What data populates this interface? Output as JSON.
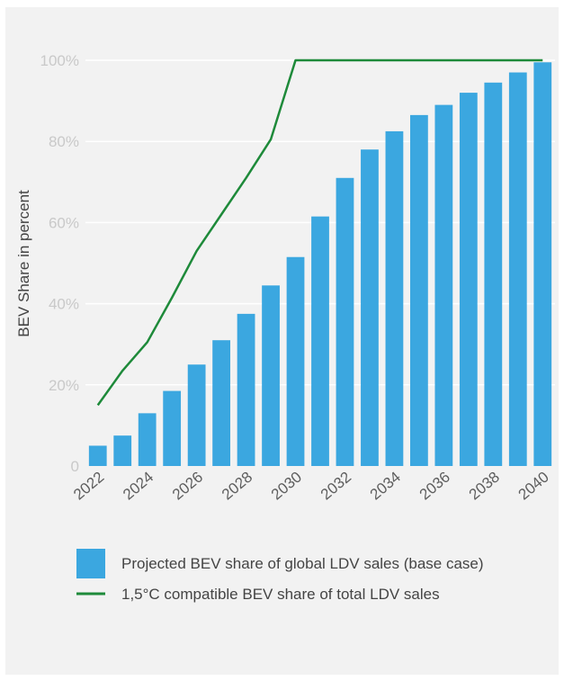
{
  "colors": {
    "bar": "#3ba7e0",
    "line": "#1e8a3a",
    "grid": "#ffffff",
    "background": "#f2f2f2"
  },
  "chart_data": {
    "type": "bar",
    "title": "",
    "xlabel": "",
    "ylabel": "BEV Share in percent",
    "ylim": [
      0,
      100
    ],
    "y_ticks": [
      "0",
      "20%",
      "40%",
      "60%",
      "80%",
      "100%"
    ],
    "x_ticks": [
      "2022",
      "2024",
      "2026",
      "2028",
      "2030",
      "2032",
      "2034",
      "2036",
      "2038",
      "2040"
    ],
    "grid": true,
    "legend_position": "bottom",
    "categories": [
      2022,
      2023,
      2024,
      2025,
      2026,
      2027,
      2028,
      2029,
      2030,
      2031,
      2032,
      2033,
      2034,
      2035,
      2036,
      2037,
      2038,
      2039,
      2040
    ],
    "series": [
      {
        "name": "Projected BEV share of global LDV sales (base case)",
        "kind": "bar",
        "values": [
          5,
          7.5,
          13,
          18.5,
          25,
          31,
          37.5,
          44.5,
          51.5,
          61.5,
          71,
          78,
          82.5,
          86.5,
          89,
          92,
          94.5,
          97,
          99.5
        ]
      },
      {
        "name": "1,5°C compatible BEV share of total LDV sales",
        "kind": "line",
        "values": [
          15,
          23.5,
          30.5,
          41.5,
          53,
          62,
          71,
          80.5,
          100,
          100,
          100,
          100,
          100,
          100,
          100,
          100,
          100,
          100,
          100
        ]
      }
    ]
  }
}
